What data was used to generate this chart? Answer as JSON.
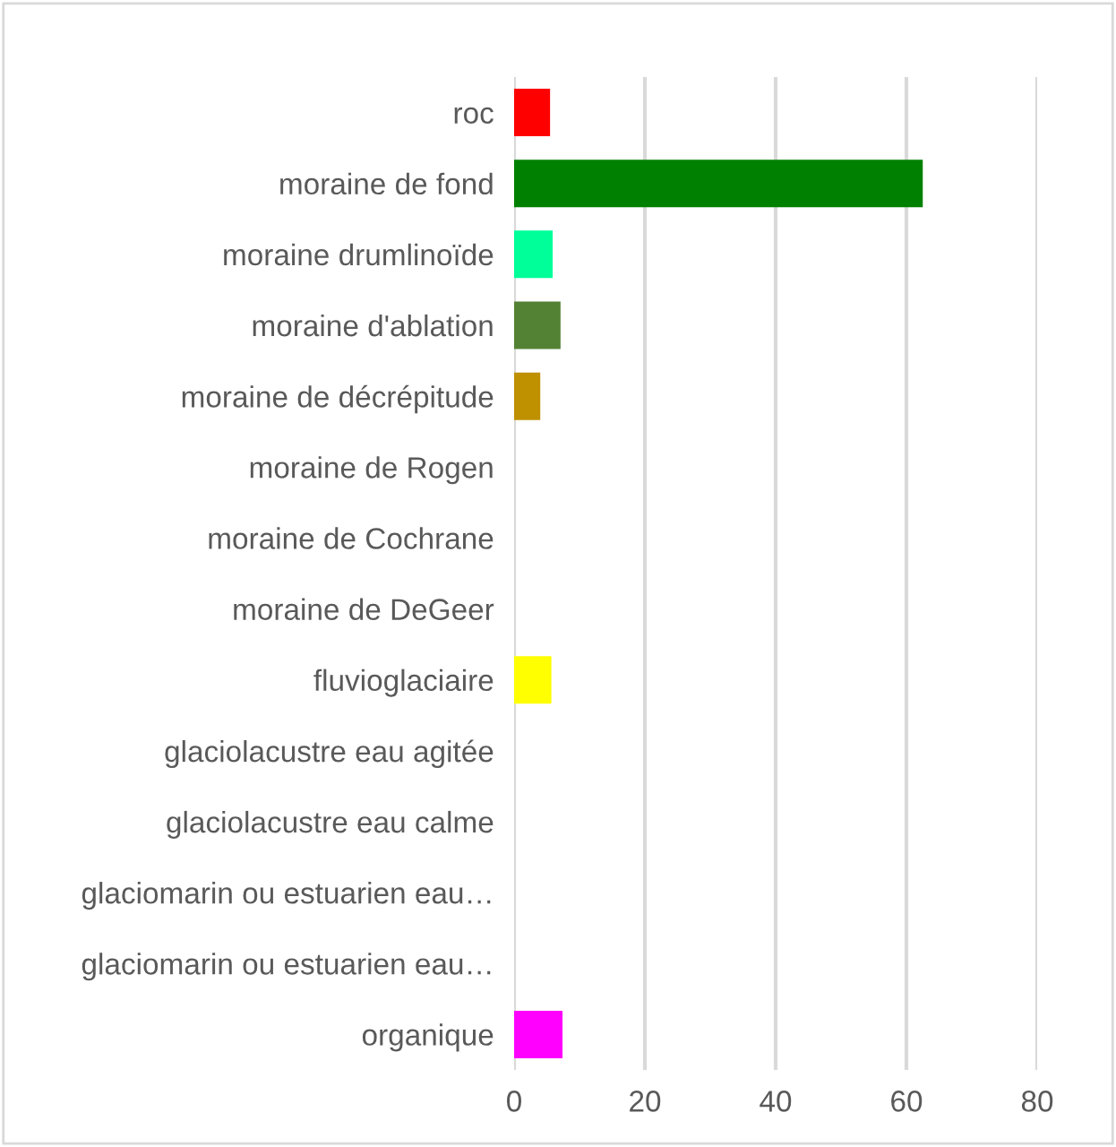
{
  "chart_data": {
    "type": "bar",
    "orientation": "horizontal",
    "categories": [
      "roc",
      "moraine de fond",
      "moraine drumlinoïde",
      "moraine d'ablation",
      "moraine de décrépitude",
      "moraine de Rogen",
      "moraine de Cochrane",
      "moraine de DeGeer",
      "fluvioglaciaire",
      "glaciolacustre eau agitée",
      "glaciolacustre eau calme",
      "glaciomarin ou estuarien eau…",
      "glaciomarin ou estuarien eau…",
      "organique"
    ],
    "values": [
      5.5,
      62.5,
      5.9,
      7.1,
      4.0,
      0,
      0,
      0,
      5.7,
      0,
      0,
      0,
      0,
      7.4
    ],
    "colors": [
      "#ff0000",
      "#008000",
      "#00ff99",
      "#548235",
      "#bf9000",
      "#ff0000",
      "#ff0000",
      "#ff0000",
      "#ffff00",
      "#ff0000",
      "#ff0000",
      "#ff0000",
      "#ff0000",
      "#ff00ff"
    ],
    "xlim": [
      0,
      80
    ],
    "xticks": [
      0,
      20,
      40,
      60,
      80
    ],
    "grid": "x"
  }
}
